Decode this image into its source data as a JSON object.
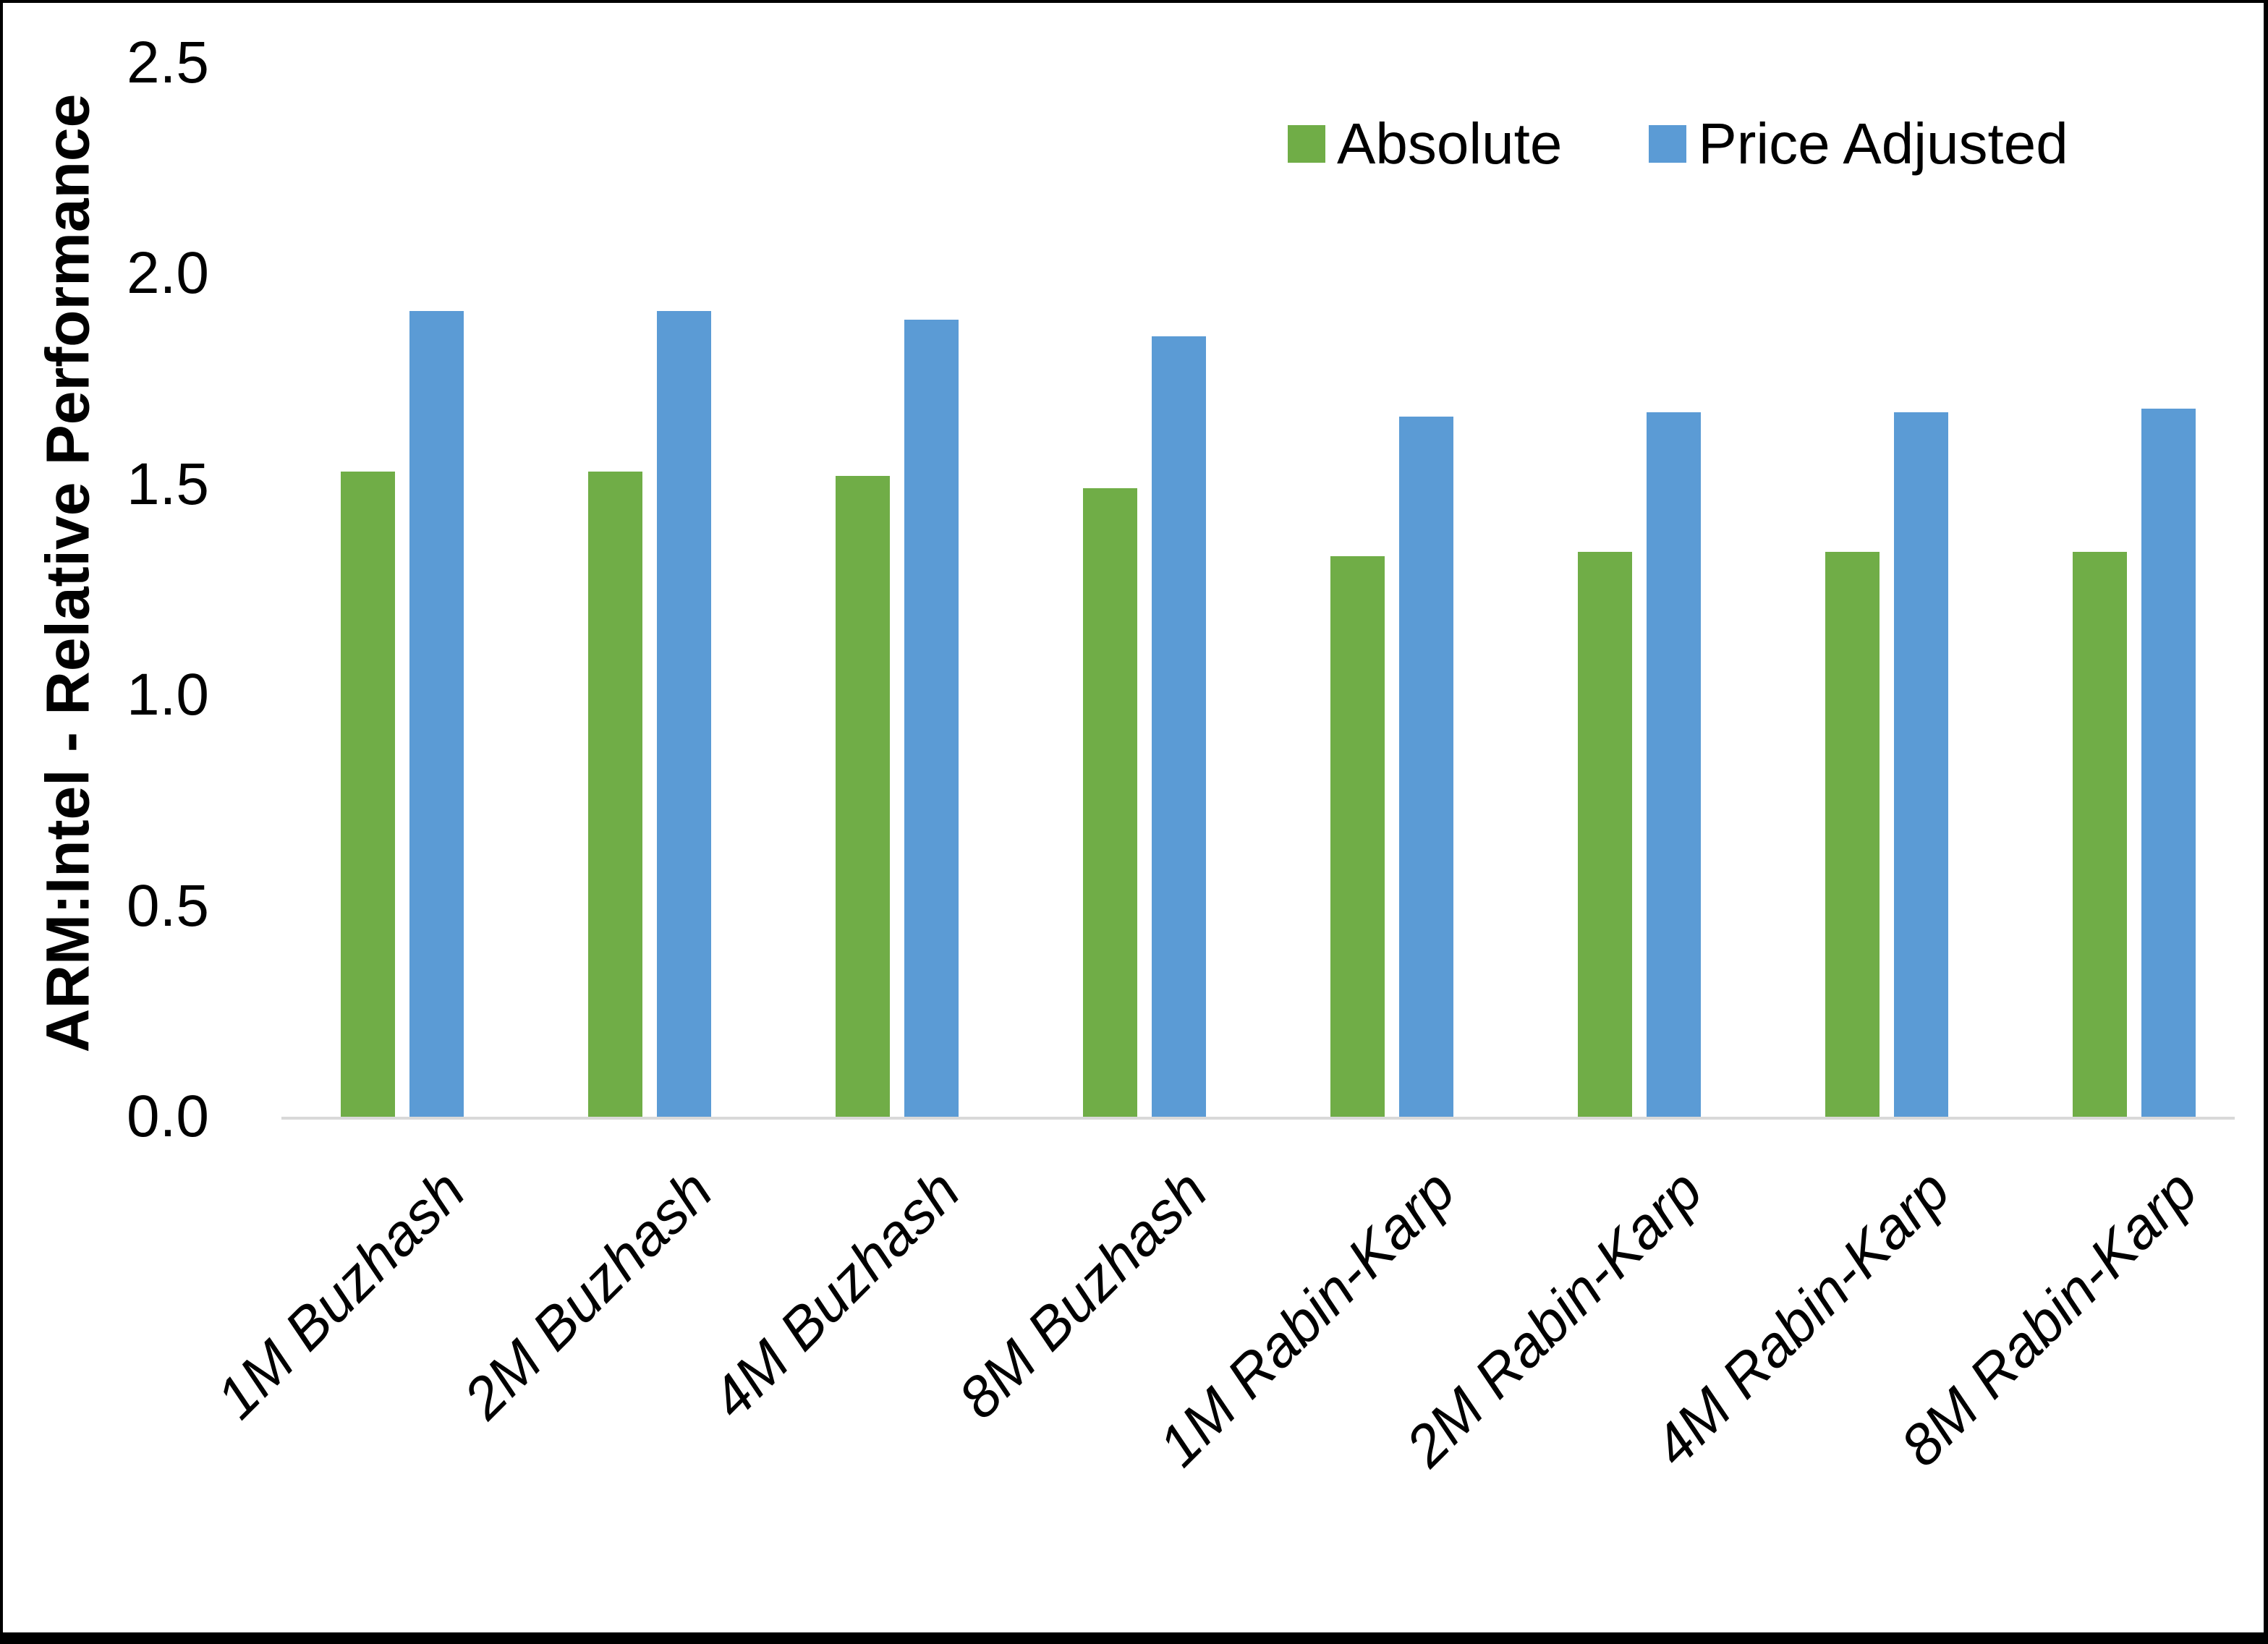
{
  "chart_data": {
    "type": "bar",
    "title": "",
    "xlabel": "",
    "ylabel": "ARM:Intel - Relative Performance",
    "ylim": [
      0,
      2.5
    ],
    "ytick_labels": [
      "0.0",
      "0.5",
      "1.0",
      "1.5",
      "2.0",
      "2.5"
    ],
    "grid": false,
    "legend_position": "top-right",
    "categories": [
      "1M Buzhash",
      "2M Buzhash",
      "4M Buzhash",
      "8M Buzhash",
      "1M Rabin-Karp",
      "2M Rabin-Karp",
      "4M Rabin-Karp",
      "8M Rabin-Karp"
    ],
    "series": [
      {
        "name": "Absolute",
        "color": "#70AD47",
        "values": [
          1.53,
          1.53,
          1.52,
          1.49,
          1.33,
          1.34,
          1.34,
          1.34
        ]
      },
      {
        "name": "Price Adjusted",
        "color": "#5B9BD5",
        "values": [
          1.91,
          1.91,
          1.89,
          1.85,
          1.66,
          1.67,
          1.67,
          1.68
        ]
      }
    ]
  },
  "colors": {
    "background": "#ffffff",
    "frame": "#000000",
    "axis_line": "#d9d9d9",
    "text": "#000000"
  }
}
